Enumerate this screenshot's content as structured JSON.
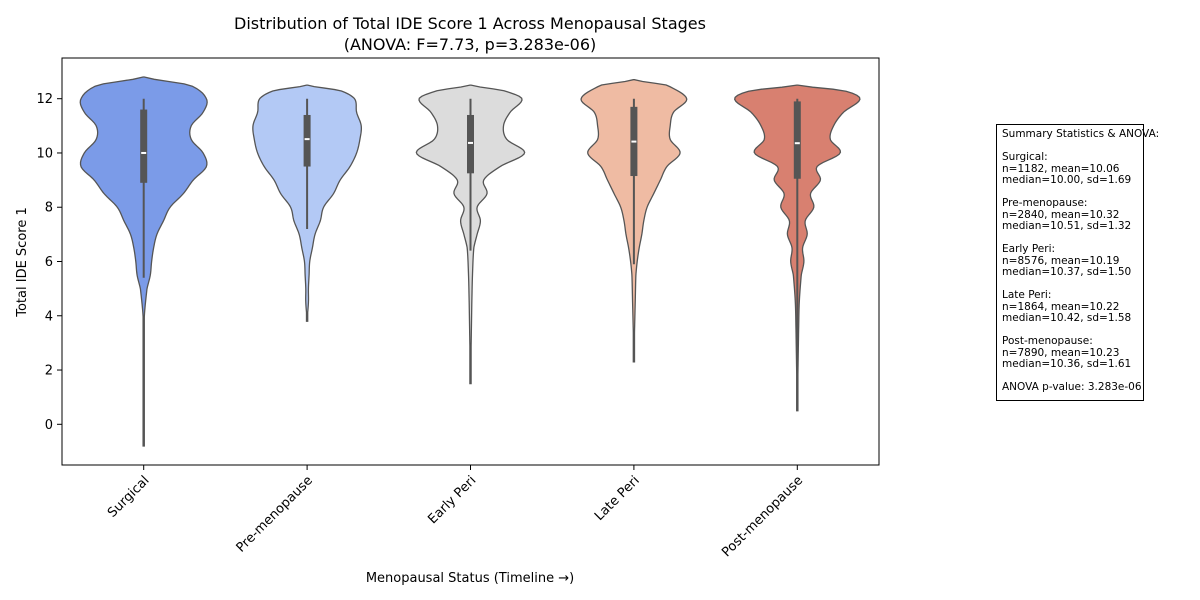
{
  "chart_data": {
    "type": "violin",
    "title": "Distribution of Total IDE Score 1 Across Menopausal Stages",
    "subtitle": "(ANOVA: F=7.73, p=3.283e-06)",
    "xlabel": "Menopausal Status (Timeline →)",
    "ylabel": "Total IDE Score 1",
    "ylim": [
      -1.5,
      13.5
    ],
    "yticks": [
      0,
      2,
      4,
      6,
      8,
      10,
      12
    ],
    "categories": [
      "Surgical",
      "Pre-menopause",
      "Early Peri",
      "Late Peri",
      "Post-menopause"
    ],
    "series": [
      {
        "category": "Surgical",
        "color": "#7b9be8",
        "min": -0.8,
        "max": 12.8,
        "q1": 8.9,
        "median": 10.0,
        "q3": 11.6,
        "whisker_low": 5.4,
        "whisker_high": 12.0,
        "density": [
          [
            -0.8,
            0.0
          ],
          [
            1,
            0.0
          ],
          [
            3,
            0.0
          ],
          [
            4,
            0.01
          ],
          [
            5,
            0.05
          ],
          [
            5.5,
            0.1
          ],
          [
            6,
            0.12
          ],
          [
            6.5,
            0.15
          ],
          [
            7,
            0.2
          ],
          [
            7.5,
            0.3
          ],
          [
            8,
            0.4
          ],
          [
            8.5,
            0.6
          ],
          [
            9,
            0.75
          ],
          [
            9.5,
            0.95
          ],
          [
            10,
            0.9
          ],
          [
            10.5,
            0.72
          ],
          [
            11,
            0.72
          ],
          [
            11.5,
            0.9
          ],
          [
            12,
            0.95
          ],
          [
            12.5,
            0.7
          ],
          [
            12.8,
            0.0
          ]
        ]
      },
      {
        "category": "Pre-menopause",
        "color": "#b3c9f5",
        "min": 3.8,
        "max": 12.5,
        "q1": 9.5,
        "median": 10.51,
        "q3": 11.4,
        "whisker_low": 7.2,
        "whisker_high": 12.0,
        "density": [
          [
            3.8,
            0.0
          ],
          [
            4.5,
            0.02
          ],
          [
            5,
            0.02
          ],
          [
            5.5,
            0.03
          ],
          [
            6,
            0.04
          ],
          [
            6.5,
            0.08
          ],
          [
            7,
            0.12
          ],
          [
            7.5,
            0.2
          ],
          [
            8,
            0.25
          ],
          [
            8.5,
            0.4
          ],
          [
            9,
            0.5
          ],
          [
            9.5,
            0.65
          ],
          [
            10,
            0.75
          ],
          [
            10.5,
            0.8
          ],
          [
            11,
            0.82
          ],
          [
            11.5,
            0.75
          ],
          [
            12,
            0.72
          ],
          [
            12.3,
            0.5
          ],
          [
            12.5,
            0.0
          ]
        ]
      },
      {
        "category": "Early Peri",
        "color": "#dcdcdc",
        "min": 1.5,
        "max": 12.5,
        "q1": 9.25,
        "median": 10.37,
        "q3": 11.4,
        "whisker_low": 6.4,
        "whisker_high": 12.0,
        "density": [
          [
            1.5,
            0.0
          ],
          [
            3,
            0.01
          ],
          [
            4.5,
            0.02
          ],
          [
            5.5,
            0.03
          ],
          [
            6.5,
            0.05
          ],
          [
            7,
            0.1
          ],
          [
            7.5,
            0.15
          ],
          [
            8,
            0.1
          ],
          [
            8.5,
            0.25
          ],
          [
            9,
            0.2
          ],
          [
            9.5,
            0.45
          ],
          [
            10,
            0.82
          ],
          [
            10.5,
            0.55
          ],
          [
            11,
            0.5
          ],
          [
            11.5,
            0.6
          ],
          [
            12,
            0.78
          ],
          [
            12.3,
            0.5
          ],
          [
            12.5,
            0.0
          ]
        ]
      },
      {
        "category": "Late Peri",
        "color": "#efbba3",
        "min": 2.3,
        "max": 12.7,
        "q1": 9.15,
        "median": 10.42,
        "q3": 11.7,
        "whisker_low": 5.9,
        "whisker_high": 12.0,
        "density": [
          [
            2.3,
            0.0
          ],
          [
            3.5,
            0.01
          ],
          [
            4.5,
            0.02
          ],
          [
            5.5,
            0.03
          ],
          [
            6,
            0.05
          ],
          [
            6.5,
            0.08
          ],
          [
            7,
            0.12
          ],
          [
            7.5,
            0.15
          ],
          [
            8,
            0.2
          ],
          [
            8.5,
            0.3
          ],
          [
            9,
            0.4
          ],
          [
            9.5,
            0.5
          ],
          [
            10,
            0.7
          ],
          [
            10.5,
            0.55
          ],
          [
            11,
            0.55
          ],
          [
            11.5,
            0.6
          ],
          [
            12,
            0.8
          ],
          [
            12.5,
            0.5
          ],
          [
            12.7,
            0.0
          ]
        ]
      },
      {
        "category": "Post-menopause",
        "color": "#d88070",
        "min": 0.5,
        "max": 12.5,
        "q1": 9.05,
        "median": 10.36,
        "q3": 11.9,
        "whisker_low": 0.5,
        "whisker_high": 12.0,
        "density": [
          [
            0.5,
            0.0
          ],
          [
            2,
            0.01
          ],
          [
            3.5,
            0.02
          ],
          [
            4.5,
            0.03
          ],
          [
            5.5,
            0.06
          ],
          [
            6,
            0.1
          ],
          [
            6.5,
            0.08
          ],
          [
            7,
            0.15
          ],
          [
            7.5,
            0.12
          ],
          [
            8,
            0.25
          ],
          [
            8.5,
            0.2
          ],
          [
            9,
            0.35
          ],
          [
            9.5,
            0.3
          ],
          [
            10,
            0.65
          ],
          [
            10.5,
            0.5
          ],
          [
            11,
            0.55
          ],
          [
            11.5,
            0.7
          ],
          [
            12,
            0.95
          ],
          [
            12.3,
            0.7
          ],
          [
            12.5,
            0.0
          ]
        ]
      }
    ]
  },
  "stats_box": {
    "heading": "Summary Statistics & ANOVA:",
    "groups": [
      {
        "label": "Surgical:",
        "line1": "n=1182, mean=10.06",
        "line2": "median=10.00, sd=1.69"
      },
      {
        "label": "Pre-menopause:",
        "line1": "n=2840, mean=10.32",
        "line2": "median=10.51, sd=1.32"
      },
      {
        "label": "Early Peri:",
        "line1": "n=8576, mean=10.19",
        "line2": "median=10.37, sd=1.50"
      },
      {
        "label": "Late Peri:",
        "line1": "n=1864, mean=10.22",
        "line2": "median=10.42, sd=1.58"
      },
      {
        "label": "Post-menopause:",
        "line1": "n=7890, mean=10.23",
        "line2": "median=10.36, sd=1.61"
      }
    ],
    "anova": "ANOVA p-value: 3.283e-06"
  }
}
